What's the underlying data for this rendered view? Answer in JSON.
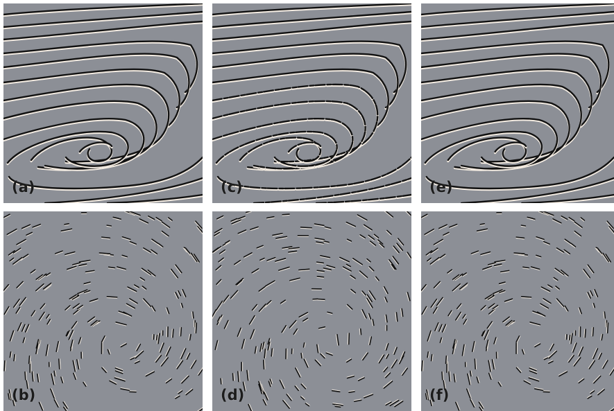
{
  "panels": [
    {
      "id": "a",
      "label": "(a)",
      "kind": "streamlines"
    },
    {
      "id": "c",
      "label": "(c)",
      "kind": "streamlines"
    },
    {
      "id": "e",
      "label": "(e)",
      "kind": "streamlines"
    },
    {
      "id": "b",
      "label": "(b)",
      "kind": "spots"
    },
    {
      "id": "d",
      "label": "(d)",
      "kind": "spots"
    },
    {
      "id": "f",
      "label": "(f)",
      "kind": "spots"
    }
  ],
  "colors": {
    "background": "#8c8f96",
    "dark": "#111111",
    "light": "#f4ece2",
    "label": "#1c1c1c"
  }
}
